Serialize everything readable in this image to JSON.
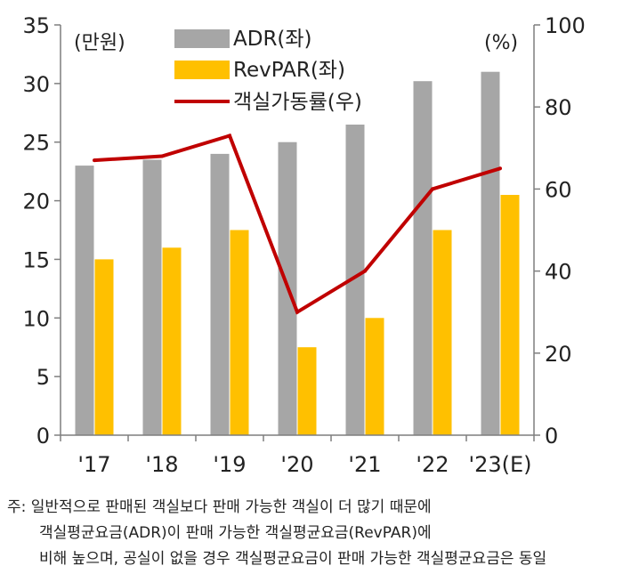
{
  "chart_data": {
    "type": "bar",
    "categories": [
      "'17",
      "'18",
      "'19",
      "'20",
      "'21",
      "'22",
      "'23(E)"
    ],
    "series": [
      {
        "name": "ADR(좌)",
        "kind": "bar",
        "axis": "left",
        "color": "#a6a6a6",
        "values": [
          23.0,
          23.5,
          24.0,
          25.0,
          26.5,
          30.2,
          31.0
        ]
      },
      {
        "name": "RevPAR(좌)",
        "kind": "bar",
        "axis": "left",
        "color": "#ffc000",
        "values": [
          15.0,
          16.0,
          17.5,
          7.5,
          10.0,
          17.5,
          20.5
        ]
      },
      {
        "name": "객실가동률(우)",
        "kind": "line",
        "axis": "right",
        "color": "#c00000",
        "values": [
          67,
          68,
          73,
          30,
          40,
          60,
          65
        ]
      }
    ],
    "y_left": {
      "ticks": [
        0,
        5,
        10,
        15,
        20,
        25,
        30,
        35
      ],
      "ylim": [
        0,
        35
      ],
      "unit_label": "(만원)"
    },
    "y_right": {
      "ticks": [
        0,
        20,
        40,
        60,
        80,
        100
      ],
      "ylim": [
        0,
        100
      ],
      "unit_label": "(%)"
    },
    "legend_position": "top-center",
    "grid": false
  },
  "footnote": {
    "line1": "주: 일반적으로 판매된 객실보다 판매 가능한 객실이 더 많기 때문에",
    "line2": "객실평균요금(ADR)이 판매 가능한 객실평균요금(RevPAR)에",
    "line3": "비해 높으며, 공실이 없을 경우 객실평균요금이 판매 가능한 객실평균요금은 동일"
  }
}
